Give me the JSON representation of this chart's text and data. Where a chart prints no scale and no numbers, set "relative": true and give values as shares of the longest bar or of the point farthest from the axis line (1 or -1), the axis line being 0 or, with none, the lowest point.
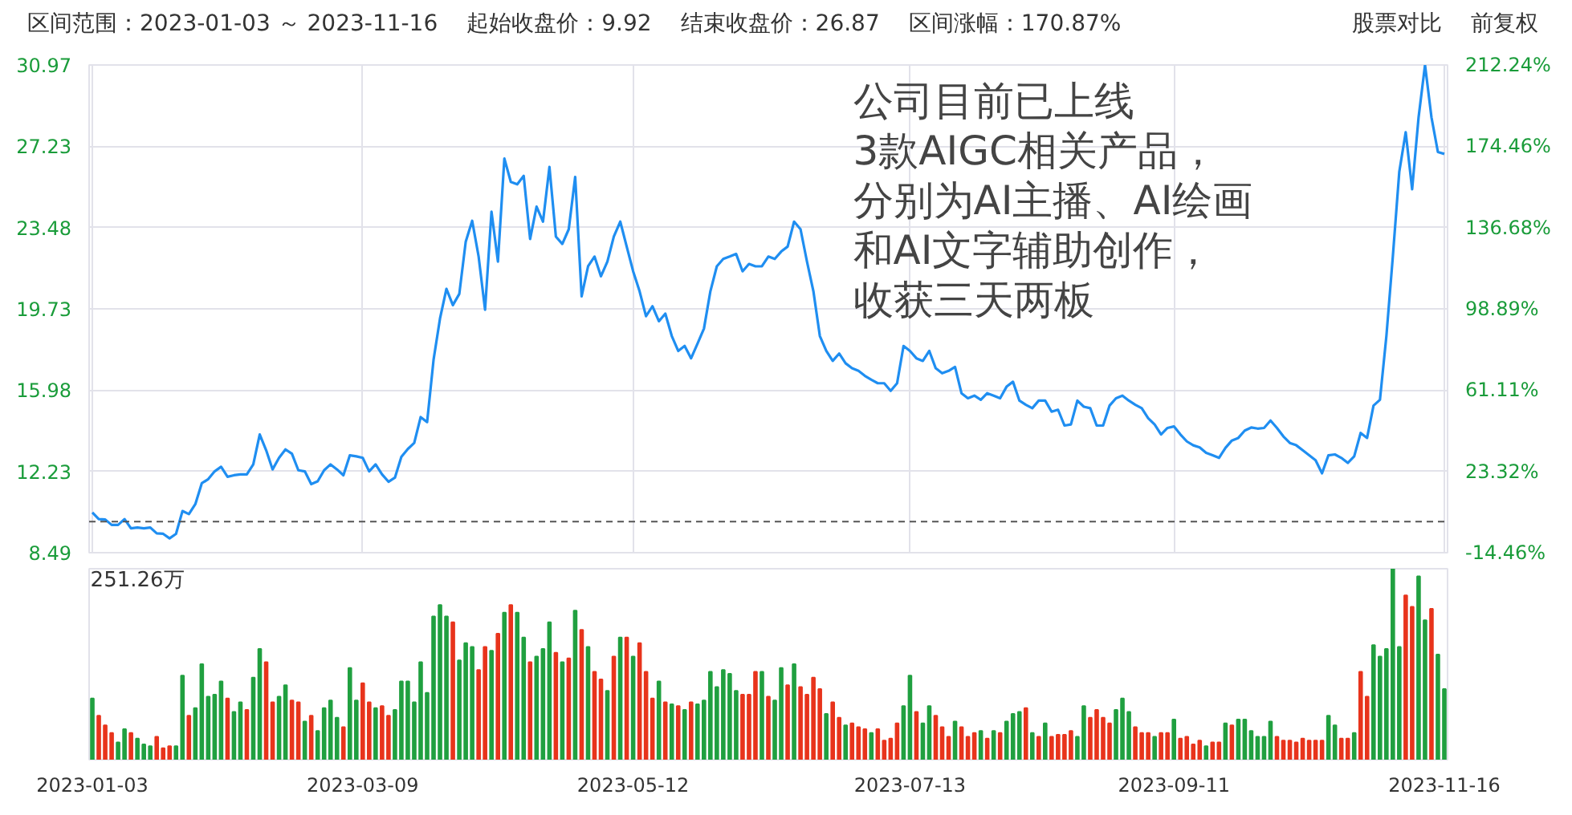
{
  "chart_data": [
    {
      "type": "line",
      "categories": [
        "2023-01-03",
        null,
        null,
        null,
        null,
        null,
        null,
        null,
        null,
        null,
        null,
        null,
        null,
        null,
        null,
        null,
        null,
        null,
        null,
        null,
        null,
        null,
        null,
        null,
        null,
        null,
        null,
        null,
        null,
        null,
        null,
        null,
        null,
        null,
        null,
        null,
        null,
        null,
        null,
        null,
        null,
        null,
        "2023-03-09",
        null,
        null,
        null,
        null,
        null,
        null,
        null,
        null,
        null,
        null,
        null,
        null,
        null,
        null,
        null,
        null,
        null,
        null,
        null,
        null,
        null,
        null,
        null,
        null,
        null,
        null,
        null,
        null,
        null,
        null,
        null,
        null,
        null,
        null,
        null,
        null,
        null,
        null,
        null,
        null,
        null,
        "2023-05-12",
        null,
        null,
        null,
        null,
        null,
        null,
        null,
        null,
        null,
        null,
        null,
        null,
        null,
        null,
        null,
        null,
        null,
        null,
        null,
        null,
        null,
        null,
        null,
        null,
        null,
        null,
        null,
        null,
        null,
        null,
        null,
        null,
        null,
        null,
        null,
        null,
        null,
        null,
        null,
        null,
        null,
        null,
        "2023-07-13",
        null,
        null,
        null,
        null,
        null,
        null,
        null,
        null,
        null,
        null,
        null,
        null,
        null,
        null,
        null,
        null,
        null,
        null,
        null,
        null,
        null,
        null,
        null,
        null,
        null,
        null,
        null,
        null,
        null,
        null,
        null,
        null,
        null,
        null,
        null,
        null,
        null,
        null,
        null,
        null,
        "2023-09-11",
        null,
        null,
        null,
        null,
        null,
        null,
        null,
        null,
        null,
        null,
        null,
        null,
        null,
        null,
        null,
        null,
        null,
        null,
        null,
        null,
        null,
        null,
        null,
        null,
        null,
        null,
        null,
        null,
        null,
        null,
        null,
        null,
        null,
        null,
        null,
        null,
        null,
        null,
        null,
        null,
        null,
        "2023-11-16"
      ],
      "series": [
        {
          "color": "#1f8ef1",
          "values": [
            10.34,
            10.04,
            10.02,
            9.77,
            9.77,
            10.04,
            9.61,
            9.65,
            9.61,
            9.65,
            9.38,
            9.36,
            9.15,
            9.36,
            10.41,
            10.27,
            10.73,
            11.69,
            11.88,
            12.24,
            12.45,
            11.99,
            12.06,
            12.1,
            12.1,
            12.56,
            13.94,
            13.21,
            12.33,
            12.86,
            13.25,
            13.05,
            12.29,
            12.24,
            11.65,
            11.78,
            12.29,
            12.56,
            12.33,
            12.06,
            12.98,
            12.93,
            12.86,
            12.24,
            12.56,
            12.1,
            11.76,
            11.95,
            12.91,
            13.27,
            13.55,
            14.74,
            14.51,
            17.38,
            19.28,
            20.65,
            19.9,
            20.42,
            22.83,
            23.79,
            22.14,
            19.69,
            24.21,
            21.91,
            26.66,
            25.58,
            25.47,
            25.86,
            22.95,
            24.44,
            23.75,
            26.27,
            23.06,
            22.72,
            23.4,
            25.81,
            20.31,
            21.69,
            22.14,
            21.23,
            21.91,
            23.06,
            23.75,
            22.6,
            21.46,
            20.54,
            19.39,
            19.85,
            19.16,
            19.51,
            18.48,
            17.79,
            18.02,
            17.45,
            18.13,
            18.82,
            20.54,
            21.69,
            22.03,
            22.14,
            22.26,
            21.46,
            21.8,
            21.69,
            21.69,
            22.14,
            22.03,
            22.37,
            22.6,
            23.75,
            23.4,
            21.91,
            20.54,
            18.48,
            17.79,
            17.33,
            17.67,
            17.22,
            16.99,
            16.87,
            16.64,
            16.46,
            16.3,
            16.3,
            15.95,
            16.3,
            18.02,
            17.79,
            17.45,
            17.33,
            17.79,
            16.99,
            16.76,
            16.87,
            17.05,
            15.84,
            15.61,
            15.73,
            15.54,
            15.84,
            15.73,
            15.61,
            16.14,
            16.37,
            15.5,
            15.31,
            15.15,
            15.5,
            15.5,
            14.99,
            15.08,
            14.35,
            14.4,
            15.5,
            15.22,
            15.15,
            14.35,
            14.35,
            15.27,
            15.61,
            15.73,
            15.5,
            15.31,
            15.15,
            14.69,
            14.4,
            13.94,
            14.24,
            14.31,
            13.94,
            13.62,
            13.44,
            13.34,
            13.09,
            12.98,
            12.86,
            13.32,
            13.66,
            13.78,
            14.12,
            14.26,
            14.21,
            14.24,
            14.58,
            14.24,
            13.85,
            13.55,
            13.44,
            13.21,
            12.98,
            12.75,
            12.15,
            12.98,
            13.02,
            12.86,
            12.63,
            12.93,
            14.01,
            13.78,
            15.27,
            15.54,
            18.48,
            22.14,
            26.04,
            27.87,
            25.24,
            28.56,
            30.97,
            28.56,
            26.96,
            26.87
          ]
        }
      ],
      "ylim": [
        8.49,
        30.97
      ],
      "yticks": [
        8.49,
        12.23,
        15.98,
        19.73,
        23.48,
        27.23,
        30.97
      ],
      "y2lim": [
        -14.46,
        212.24
      ],
      "y2ticks": [
        {
          "value": -14.46,
          "label": "-14.46%"
        },
        {
          "value": 23.32,
          "label": "23.32%"
        },
        {
          "value": 61.11,
          "label": "61.11%"
        },
        {
          "value": 98.89,
          "label": "98.89%"
        },
        {
          "value": 136.68,
          "label": "136.68%"
        },
        {
          "value": 174.46,
          "label": "174.46%"
        },
        {
          "value": 212.24,
          "label": "212.24%"
        }
      ],
      "ref_lines": [
        {
          "axis": "y",
          "value": 9.92,
          "color": "#555555",
          "line_style": "dashed"
        }
      ],
      "grid": true,
      "tick_labels": "y",
      "annotations": [
        "区间范围：2023-01-03 ～ 2023-11-16",
        "起始收盘价：9.92",
        "结束收盘价：26.87",
        "区间涨幅：170.87%",
        "股票对比",
        "前复权",
        "公司目前已上线",
        "3款AIGC相关产品，",
        "分别为AI主播、AI绘画",
        "和AI文字辅助创作，",
        "收获三天两板"
      ]
    },
    {
      "type": "bar",
      "categories": [
        "2023-01-03",
        null,
        null,
        null,
        null,
        null,
        null,
        null,
        null,
        null,
        null,
        null,
        null,
        null,
        null,
        null,
        null,
        null,
        null,
        null,
        null,
        null,
        null,
        null,
        null,
        null,
        null,
        null,
        null,
        null,
        null,
        null,
        null,
        null,
        null,
        null,
        null,
        null,
        null,
        null,
        null,
        null,
        "2023-03-09",
        null,
        null,
        null,
        null,
        null,
        null,
        null,
        null,
        null,
        null,
        null,
        null,
        null,
        null,
        null,
        null,
        null,
        null,
        null,
        null,
        null,
        null,
        null,
        null,
        null,
        null,
        null,
        null,
        null,
        null,
        null,
        null,
        null,
        null,
        null,
        null,
        null,
        null,
        null,
        null,
        null,
        "2023-05-12",
        null,
        null,
        null,
        null,
        null,
        null,
        null,
        null,
        null,
        null,
        null,
        null,
        null,
        null,
        null,
        null,
        null,
        null,
        null,
        null,
        null,
        null,
        null,
        null,
        null,
        null,
        null,
        null,
        null,
        null,
        null,
        null,
        null,
        null,
        null,
        null,
        null,
        null,
        null,
        null,
        null,
        null,
        "2023-07-13",
        null,
        null,
        null,
        null,
        null,
        null,
        null,
        null,
        null,
        null,
        null,
        null,
        null,
        null,
        null,
        null,
        null,
        null,
        null,
        null,
        null,
        null,
        null,
        null,
        null,
        null,
        null,
        null,
        null,
        null,
        null,
        null,
        null,
        null,
        null,
        null,
        null,
        null,
        null,
        null,
        "2023-09-11",
        null,
        null,
        null,
        null,
        null,
        null,
        null,
        null,
        null,
        null,
        null,
        null,
        null,
        null,
        null,
        null,
        null,
        null,
        null,
        null,
        null,
        null,
        null,
        null,
        null,
        null,
        null,
        null,
        null,
        null,
        null,
        null,
        null,
        null,
        null,
        null,
        null,
        null,
        null,
        null,
        null,
        "2023-11-16"
      ],
      "values": [
        0.32,
        0.23,
        0.18,
        0.14,
        0.09,
        0.16,
        0.14,
        0.11,
        0.08,
        0.07,
        0.12,
        0.06,
        0.07,
        0.07,
        0.44,
        0.23,
        0.27,
        0.5,
        0.33,
        0.34,
        0.41,
        0.32,
        0.25,
        0.3,
        0.26,
        0.43,
        0.58,
        0.51,
        0.3,
        0.33,
        0.39,
        0.31,
        0.3,
        0.2,
        0.23,
        0.15,
        0.27,
        0.31,
        0.22,
        0.17,
        0.48,
        0.31,
        0.4,
        0.3,
        0.27,
        0.28,
        0.23,
        0.26,
        0.41,
        0.41,
        0.3,
        0.51,
        0.35,
        0.75,
        0.81,
        0.75,
        0.72,
        0.52,
        0.61,
        0.59,
        0.47,
        0.59,
        0.57,
        0.66,
        0.77,
        0.81,
        0.77,
        0.64,
        0.51,
        0.54,
        0.58,
        0.72,
        0.56,
        0.51,
        0.53,
        0.78,
        0.68,
        0.59,
        0.46,
        0.42,
        0.36,
        0.54,
        0.64,
        0.64,
        0.54,
        0.61,
        0.46,
        0.32,
        0.41,
        0.3,
        0.29,
        0.28,
        0.26,
        0.3,
        0.29,
        0.31,
        0.46,
        0.38,
        0.47,
        0.45,
        0.36,
        0.34,
        0.34,
        0.46,
        0.46,
        0.33,
        0.31,
        0.48,
        0.39,
        0.5,
        0.38,
        0.34,
        0.43,
        0.37,
        0.24,
        0.3,
        0.22,
        0.18,
        0.19,
        0.17,
        0.16,
        0.14,
        0.16,
        0.1,
        0.11,
        0.19,
        0.28,
        0.44,
        0.25,
        0.19,
        0.28,
        0.23,
        0.17,
        0.12,
        0.2,
        0.17,
        0.12,
        0.14,
        0.15,
        0.11,
        0.15,
        0.14,
        0.2,
        0.24,
        0.25,
        0.27,
        0.14,
        0.12,
        0.19,
        0.12,
        0.13,
        0.13,
        0.15,
        0.12,
        0.28,
        0.22,
        0.26,
        0.22,
        0.19,
        0.26,
        0.32,
        0.25,
        0.17,
        0.14,
        0.14,
        0.12,
        0.14,
        0.14,
        0.21,
        0.11,
        0.12,
        0.08,
        0.1,
        0.07,
        0.09,
        0.09,
        0.19,
        0.18,
        0.21,
        0.21,
        0.15,
        0.12,
        0.12,
        0.2,
        0.12,
        0.1,
        0.1,
        0.09,
        0.11,
        0.1,
        0.1,
        0.1,
        0.23,
        0.18,
        0.11,
        0.11,
        0.14,
        0.46,
        0.33,
        0.6,
        0.54,
        0.58,
        1,
        0.59,
        0.86,
        0.8,
        0.96,
        0.73,
        0.79,
        0.55,
        0.37
      ],
      "colors": [
        "#20a040",
        "#e8341c",
        "#e8341c",
        "#e8341c",
        "#20a040",
        "#20a040",
        "#e8341c",
        "#20a040",
        "#20a040",
        "#20a040",
        "#e8341c",
        "#e8341c",
        "#e8341c",
        "#20a040",
        "#20a040",
        "#e8341c",
        "#20a040",
        "#20a040",
        "#20a040",
        "#20a040",
        "#20a040",
        "#e8341c",
        "#20a040",
        "#20a040",
        "#e8341c",
        "#20a040",
        "#20a040",
        "#e8341c",
        "#e8341c",
        "#20a040",
        "#20a040",
        "#e8341c",
        "#e8341c",
        "#20a040",
        "#e8341c",
        "#20a040",
        "#20a040",
        "#20a040",
        "#20a040",
        "#e8341c",
        "#20a040",
        "#20a040",
        "#e8341c",
        "#e8341c",
        "#20a040",
        "#e8341c",
        "#e8341c",
        "#20a040",
        "#20a040",
        "#20a040",
        "#20a040",
        "#20a040",
        "#20a040",
        "#20a040",
        "#20a040",
        "#20a040",
        "#e8341c",
        "#20a040",
        "#20a040",
        "#20a040",
        "#e8341c",
        "#e8341c",
        "#20a040",
        "#e8341c",
        "#20a040",
        "#e8341c",
        "#20a040",
        "#20a040",
        "#e8341c",
        "#20a040",
        "#20a040",
        "#20a040",
        "#e8341c",
        "#20a040",
        "#e8341c",
        "#20a040",
        "#e8341c",
        "#20a040",
        "#e8341c",
        "#e8341c",
        "#20a040",
        "#e8341c",
        "#20a040",
        "#e8341c",
        "#20a040",
        "#e8341c",
        "#e8341c",
        "#e8341c",
        "#20a040",
        "#e8341c",
        "#20a040",
        "#e8341c",
        "#20a040",
        "#e8341c",
        "#20a040",
        "#20a040",
        "#20a040",
        "#20a040",
        "#20a040",
        "#20a040",
        "#20a040",
        "#e8341c",
        "#e8341c",
        "#e8341c",
        "#20a040",
        "#e8341c",
        "#20a040",
        "#20a040",
        "#e8341c",
        "#20a040",
        "#e8341c",
        "#e8341c",
        "#e8341c",
        "#e8341c",
        "#20a040",
        "#e8341c",
        "#e8341c",
        "#20a040",
        "#e8341c",
        "#e8341c",
        "#e8341c",
        "#20a040",
        "#e8341c",
        "#e8341c",
        "#e8341c",
        "#e8341c",
        "#20a040",
        "#20a040",
        "#e8341c",
        "#20a040",
        "#20a040",
        "#e8341c",
        "#e8341c",
        "#e8341c",
        "#20a040",
        "#e8341c",
        "#e8341c",
        "#e8341c",
        "#20a040",
        "#e8341c",
        "#20a040",
        "#e8341c",
        "#20a040",
        "#20a040",
        "#20a040",
        "#e8341c",
        "#20a040",
        "#e8341c",
        "#20a040",
        "#e8341c",
        "#e8341c",
        "#e8341c",
        "#e8341c",
        "#20a040",
        "#20a040",
        "#e8341c",
        "#e8341c",
        "#e8341c",
        "#e8341c",
        "#20a040",
        "#20a040",
        "#20a040",
        "#e8341c",
        "#e8341c",
        "#e8341c",
        "#20a040",
        "#e8341c",
        "#e8341c",
        "#20a040",
        "#e8341c",
        "#e8341c",
        "#e8341c",
        "#e8341c",
        "#20a040",
        "#e8341c",
        "#e8341c",
        "#20a040",
        "#e8341c",
        "#20a040",
        "#20a040",
        "#20a040",
        "#20a040",
        "#20a040",
        "#20a040",
        "#e8341c",
        "#e8341c",
        "#e8341c",
        "#e8341c",
        "#e8341c",
        "#e8341c",
        "#e8341c",
        "#e8341c",
        "#20a040",
        "#20a040",
        "#e8341c",
        "#e8341c",
        "#20a040",
        "#e8341c",
        "#e8341c",
        "#20a040",
        "#20a040",
        "#20a040",
        "#20a040",
        "#20a040",
        "#e8341c",
        "#e8341c",
        "#20a040",
        "#20a040",
        "#e8341c",
        "#20a040",
        "#20a040"
      ],
      "relative": true,
      "annotations": [
        "251.26万"
      ]
    }
  ]
}
